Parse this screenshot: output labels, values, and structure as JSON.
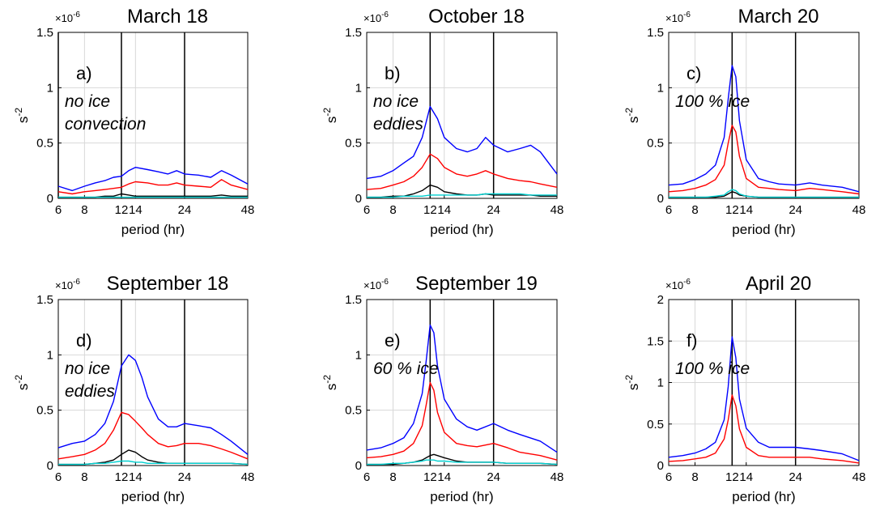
{
  "chart_data": [
    {
      "type": "line",
      "title": "March 18",
      "panel_label": "a)",
      "annotations": [
        "no ice",
        "convection"
      ],
      "xlabel": "period (hr)",
      "ylabel": "s-2",
      "y_scale_label": "×10-6",
      "xscale": "log",
      "xlim": [
        6,
        48
      ],
      "ylim": [
        0,
        1.5
      ],
      "xticks": [
        6,
        8,
        12,
        14,
        24,
        48
      ],
      "yticks": [
        0,
        0.5,
        1,
        1.5
      ],
      "ytick_labels": [
        "0",
        "0.5",
        "1",
        "1.5"
      ],
      "grid": true,
      "vlines": [
        6,
        12,
        24
      ],
      "x": [
        6,
        7,
        8,
        9,
        10,
        11,
        12,
        13,
        14,
        16,
        18,
        20,
        22,
        24,
        28,
        32,
        36,
        40,
        48
      ],
      "series": [
        {
          "color": "#0000ff",
          "values": [
            0.11,
            0.07,
            0.11,
            0.14,
            0.16,
            0.19,
            0.2,
            0.25,
            0.28,
            0.26,
            0.24,
            0.22,
            0.25,
            0.22,
            0.21,
            0.19,
            0.25,
            0.21,
            0.13
          ]
        },
        {
          "color": "#ff0000",
          "values": [
            0.06,
            0.04,
            0.06,
            0.07,
            0.08,
            0.09,
            0.1,
            0.13,
            0.15,
            0.14,
            0.12,
            0.12,
            0.14,
            0.12,
            0.11,
            0.1,
            0.17,
            0.12,
            0.08
          ]
        },
        {
          "color": "#000000",
          "values": [
            0.01,
            0.01,
            0.01,
            0.01,
            0.02,
            0.02,
            0.04,
            0.03,
            0.02,
            0.02,
            0.02,
            0.02,
            0.02,
            0.02,
            0.02,
            0.02,
            0.03,
            0.02,
            0.02
          ]
        },
        {
          "color": "#00d0d0",
          "values": [
            0.01,
            0.01,
            0.01,
            0.01,
            0.01,
            0.01,
            0.01,
            0.01,
            0.01,
            0.01,
            0.01,
            0.01,
            0.01,
            0.01,
            0.01,
            0.01,
            0.01,
            0.01,
            0.01
          ]
        }
      ]
    },
    {
      "type": "line",
      "title": "October 18",
      "panel_label": "b)",
      "annotations": [
        "no ice",
        "eddies"
      ],
      "xlabel": "period (hr)",
      "ylabel": "s-2",
      "y_scale_label": "×10-6",
      "xscale": "log",
      "xlim": [
        6,
        48
      ],
      "ylim": [
        0,
        1.5
      ],
      "xticks": [
        6,
        8,
        12,
        14,
        24,
        48
      ],
      "yticks": [
        0,
        0.5,
        1,
        1.5
      ],
      "ytick_labels": [
        "0",
        "0.5",
        "1",
        "1.5"
      ],
      "grid": true,
      "vlines": [
        12,
        24
      ],
      "x": [
        6,
        7,
        8,
        9,
        10,
        11,
        12,
        13,
        14,
        16,
        18,
        20,
        22,
        24,
        28,
        32,
        36,
        40,
        48
      ],
      "series": [
        {
          "color": "#0000ff",
          "values": [
            0.18,
            0.2,
            0.25,
            0.32,
            0.38,
            0.55,
            0.83,
            0.72,
            0.55,
            0.45,
            0.42,
            0.45,
            0.55,
            0.48,
            0.42,
            0.45,
            0.48,
            0.42,
            0.22
          ]
        },
        {
          "color": "#ff0000",
          "values": [
            0.08,
            0.09,
            0.12,
            0.15,
            0.2,
            0.28,
            0.4,
            0.36,
            0.28,
            0.22,
            0.2,
            0.22,
            0.25,
            0.22,
            0.18,
            0.16,
            0.15,
            0.13,
            0.1
          ]
        },
        {
          "color": "#000000",
          "values": [
            0.01,
            0.01,
            0.02,
            0.02,
            0.04,
            0.07,
            0.12,
            0.1,
            0.06,
            0.04,
            0.03,
            0.03,
            0.04,
            0.03,
            0.03,
            0.03,
            0.03,
            0.02,
            0.02
          ]
        },
        {
          "color": "#00d0d0",
          "values": [
            0.01,
            0.01,
            0.01,
            0.02,
            0.02,
            0.02,
            0.03,
            0.03,
            0.03,
            0.03,
            0.03,
            0.03,
            0.04,
            0.04,
            0.04,
            0.04,
            0.03,
            0.03,
            0.03
          ]
        }
      ]
    },
    {
      "type": "line",
      "title": "March 20",
      "panel_label": "c)",
      "annotations": [
        "100 % ice"
      ],
      "xlabel": "period (hr)",
      "ylabel": "s-2",
      "y_scale_label": "×10-6",
      "xscale": "log",
      "xlim": [
        6,
        48
      ],
      "ylim": [
        0,
        1.5
      ],
      "xticks": [
        6,
        8,
        12,
        14,
        24,
        48
      ],
      "yticks": [
        0,
        0.5,
        1,
        1.5
      ],
      "ytick_labels": [
        "0",
        "0.5",
        "1",
        "1.5"
      ],
      "grid": true,
      "vlines": [
        12,
        24
      ],
      "x": [
        6,
        7,
        8,
        9,
        10,
        11,
        11.5,
        12,
        12.5,
        13,
        14,
        16,
        18,
        20,
        24,
        28,
        32,
        40,
        48
      ],
      "series": [
        {
          "color": "#0000ff",
          "values": [
            0.12,
            0.13,
            0.17,
            0.22,
            0.3,
            0.55,
            0.9,
            1.2,
            1.1,
            0.7,
            0.35,
            0.18,
            0.15,
            0.13,
            0.12,
            0.14,
            0.12,
            0.1,
            0.06
          ]
        },
        {
          "color": "#ff0000",
          "values": [
            0.06,
            0.07,
            0.09,
            0.12,
            0.17,
            0.3,
            0.5,
            0.66,
            0.6,
            0.38,
            0.18,
            0.1,
            0.09,
            0.08,
            0.07,
            0.09,
            0.08,
            0.06,
            0.04
          ]
        },
        {
          "color": "#000000",
          "values": [
            0.01,
            0.01,
            0.01,
            0.01,
            0.01,
            0.02,
            0.04,
            0.06,
            0.05,
            0.03,
            0.02,
            0.01,
            0.01,
            0.01,
            0.01,
            0.01,
            0.01,
            0.01,
            0.01
          ]
        },
        {
          "color": "#00d0d0",
          "values": [
            0.01,
            0.01,
            0.01,
            0.01,
            0.02,
            0.03,
            0.06,
            0.08,
            0.07,
            0.04,
            0.02,
            0.01,
            0.01,
            0.01,
            0.01,
            0.01,
            0.01,
            0.01,
            0.01
          ]
        }
      ]
    },
    {
      "type": "line",
      "title": "September 18",
      "panel_label": "d)",
      "annotations": [
        "no ice",
        "eddies"
      ],
      "xlabel": "period (hr)",
      "ylabel": "s-2",
      "y_scale_label": "×10-6",
      "xscale": "log",
      "xlim": [
        6,
        48
      ],
      "ylim": [
        0,
        1.5
      ],
      "xticks": [
        6,
        8,
        12,
        14,
        24,
        48
      ],
      "yticks": [
        0,
        0.5,
        1,
        1.5
      ],
      "ytick_labels": [
        "0",
        "0.5",
        "1",
        "1.5"
      ],
      "grid": true,
      "vlines": [
        12,
        24
      ],
      "x": [
        6,
        7,
        8,
        9,
        10,
        11,
        12,
        13,
        14,
        15,
        16,
        18,
        20,
        22,
        24,
        28,
        32,
        36,
        40,
        48
      ],
      "series": [
        {
          "color": "#0000ff",
          "values": [
            0.16,
            0.2,
            0.22,
            0.28,
            0.38,
            0.58,
            0.9,
            1.0,
            0.95,
            0.8,
            0.62,
            0.42,
            0.35,
            0.35,
            0.38,
            0.36,
            0.34,
            0.28,
            0.22,
            0.1
          ]
        },
        {
          "color": "#ff0000",
          "values": [
            0.06,
            0.08,
            0.1,
            0.14,
            0.2,
            0.32,
            0.48,
            0.46,
            0.4,
            0.34,
            0.28,
            0.2,
            0.17,
            0.18,
            0.2,
            0.2,
            0.18,
            0.15,
            0.12,
            0.06
          ]
        },
        {
          "color": "#000000",
          "values": [
            0.01,
            0.01,
            0.01,
            0.02,
            0.03,
            0.05,
            0.1,
            0.14,
            0.12,
            0.08,
            0.05,
            0.03,
            0.02,
            0.02,
            0.02,
            0.02,
            0.02,
            0.02,
            0.02,
            0.01
          ]
        },
        {
          "color": "#00d0d0",
          "values": [
            0.01,
            0.01,
            0.01,
            0.02,
            0.02,
            0.03,
            0.04,
            0.04,
            0.03,
            0.03,
            0.02,
            0.02,
            0.02,
            0.02,
            0.02,
            0.02,
            0.02,
            0.02,
            0.02,
            0.01
          ]
        }
      ]
    },
    {
      "type": "line",
      "title": "September 19",
      "panel_label": "e)",
      "annotations": [
        "60 % ice"
      ],
      "xlabel": "period (hr)",
      "ylabel": "s-2",
      "y_scale_label": "×10-6",
      "xscale": "log",
      "xlim": [
        6,
        48
      ],
      "ylim": [
        0,
        1.5
      ],
      "xticks": [
        6,
        8,
        12,
        14,
        24,
        48
      ],
      "yticks": [
        0,
        0.5,
        1,
        1.5
      ],
      "ytick_labels": [
        "0",
        "0.5",
        "1",
        "1.5"
      ],
      "grid": true,
      "vlines": [
        12,
        24
      ],
      "x": [
        6,
        7,
        8,
        9,
        10,
        11,
        11.5,
        12,
        12.5,
        13,
        14,
        16,
        18,
        20,
        24,
        28,
        32,
        40,
        48
      ],
      "series": [
        {
          "color": "#0000ff",
          "values": [
            0.14,
            0.16,
            0.2,
            0.25,
            0.38,
            0.65,
            0.95,
            1.27,
            1.2,
            0.9,
            0.6,
            0.42,
            0.35,
            0.32,
            0.38,
            0.32,
            0.28,
            0.22,
            0.12
          ]
        },
        {
          "color": "#ff0000",
          "values": [
            0.07,
            0.08,
            0.1,
            0.13,
            0.2,
            0.36,
            0.55,
            0.75,
            0.68,
            0.48,
            0.3,
            0.2,
            0.18,
            0.17,
            0.2,
            0.16,
            0.12,
            0.09,
            0.05
          ]
        },
        {
          "color": "#000000",
          "values": [
            0.01,
            0.01,
            0.01,
            0.02,
            0.03,
            0.05,
            0.07,
            0.09,
            0.1,
            0.09,
            0.07,
            0.04,
            0.03,
            0.03,
            0.03,
            0.02,
            0.02,
            0.02,
            0.01
          ]
        },
        {
          "color": "#00d0d0",
          "values": [
            0.01,
            0.01,
            0.02,
            0.02,
            0.03,
            0.04,
            0.05,
            0.05,
            0.05,
            0.04,
            0.04,
            0.03,
            0.03,
            0.03,
            0.03,
            0.02,
            0.02,
            0.02,
            0.01
          ]
        }
      ]
    },
    {
      "type": "line",
      "title": "April 20",
      "panel_label": "f)",
      "annotations": [
        "100 % ice"
      ],
      "xlabel": "period (hr)",
      "ylabel": "s-2",
      "y_scale_label": "×10-6",
      "xscale": "log",
      "xlim": [
        6,
        48
      ],
      "ylim": [
        0,
        2
      ],
      "xticks": [
        6,
        8,
        12,
        14,
        24,
        48
      ],
      "yticks": [
        0,
        0.5,
        1,
        1.5,
        2
      ],
      "ytick_labels": [
        "0",
        "0.5",
        "1",
        "1.5",
        "2"
      ],
      "grid": true,
      "vlines": [
        12,
        24
      ],
      "x": [
        6,
        7,
        8,
        9,
        10,
        11,
        11.5,
        12,
        12.5,
        13,
        14,
        16,
        18,
        20,
        24,
        28,
        32,
        40,
        48
      ],
      "series": [
        {
          "color": "#0000ff",
          "values": [
            0.1,
            0.12,
            0.15,
            0.2,
            0.28,
            0.55,
            0.95,
            1.55,
            1.3,
            0.8,
            0.45,
            0.28,
            0.22,
            0.22,
            0.22,
            0.2,
            0.18,
            0.14,
            0.06
          ]
        },
        {
          "color": "#ff0000",
          "values": [
            0.05,
            0.06,
            0.08,
            0.1,
            0.15,
            0.32,
            0.55,
            0.85,
            0.72,
            0.44,
            0.22,
            0.12,
            0.1,
            0.1,
            0.1,
            0.1,
            0.08,
            0.06,
            0.03
          ]
        }
      ]
    }
  ]
}
